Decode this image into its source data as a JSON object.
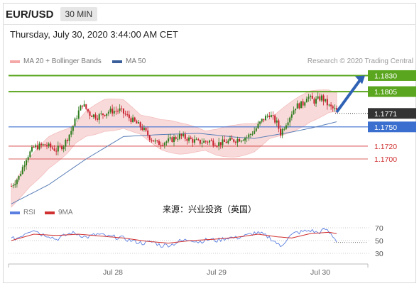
{
  "header": {
    "pair": "EUR/USD",
    "timeframe": "30 MIN",
    "datetime": "Thursday, July 30, 2020 3:44:00 AM CET"
  },
  "legend": {
    "ma20": "MA 20 + Bollinger Bands",
    "ma50": "MA 50",
    "rsi": "RSI",
    "ma9": "9MA"
  },
  "credit": "Research © 2020 Trading Central",
  "watermark": "来源：兴业投资（英国）",
  "colors": {
    "resistance": "#5aa61e",
    "support_blue": "#3a6fcf",
    "support_red": "#d03030",
    "candle_up": "#2f7d1f",
    "candle_down": "#c71f2c",
    "band_fill": "#f9d6d6",
    "ma50": "#5b7fb8",
    "rsi": "#5b7fe0",
    "ma9": "#d03030",
    "price_tag": "#333333"
  },
  "chart_data": [
    {
      "type": "candlestick",
      "title": "EUR/USD",
      "x_labels": [
        "Jul 28",
        "Jul 29",
        "Jul 30"
      ],
      "ylim": [
        1.1627,
        1.1846
      ],
      "levels": [
        {
          "value": 1.183,
          "label": "1.1830",
          "kind": "resistance"
        },
        {
          "value": 1.1805,
          "label": "1.1805",
          "kind": "resistance"
        },
        {
          "value": 1.1771,
          "label": "1.1771",
          "kind": "last_price"
        },
        {
          "value": 1.175,
          "label": "1.1750",
          "kind": "pivot"
        },
        {
          "value": 1.172,
          "label": "1.1720",
          "kind": "support"
        },
        {
          "value": 1.17,
          "label": "1.1700",
          "kind": "support"
        }
      ],
      "arrow": {
        "from": 1.1773,
        "to": 1.183,
        "direction": "up"
      },
      "close_path": [
        [
          0,
          1.1658
        ],
        [
          4,
          1.1672
        ],
        [
          8,
          1.1702
        ],
        [
          12,
          1.1718
        ],
        [
          18,
          1.1722
        ],
        [
          24,
          1.1714
        ],
        [
          28,
          1.1722
        ],
        [
          32,
          1.1744
        ],
        [
          36,
          1.1774
        ],
        [
          38,
          1.1786
        ],
        [
          42,
          1.177
        ],
        [
          46,
          1.1766
        ],
        [
          52,
          1.1774
        ],
        [
          58,
          1.1776
        ],
        [
          64,
          1.1762
        ],
        [
          70,
          1.1748
        ],
        [
          74,
          1.1734
        ],
        [
          78,
          1.1724
        ],
        [
          84,
          1.1728
        ],
        [
          90,
          1.1736
        ],
        [
          96,
          1.173
        ],
        [
          100,
          1.1726
        ],
        [
          106,
          1.1728
        ],
        [
          110,
          1.1724
        ],
        [
          114,
          1.1726
        ],
        [
          120,
          1.173
        ],
        [
          126,
          1.1734
        ],
        [
          130,
          1.1744
        ],
        [
          134,
          1.176
        ],
        [
          138,
          1.177
        ],
        [
          142,
          1.1756
        ],
        [
          144,
          1.174
        ],
        [
          148,
          1.1762
        ],
        [
          152,
          1.1782
        ],
        [
          156,
          1.1786
        ],
        [
          158,
          1.1798
        ],
        [
          162,
          1.179
        ],
        [
          166,
          1.1796
        ],
        [
          170,
          1.1782
        ],
        [
          174,
          1.1775
        ]
      ],
      "ma20": [
        [
          0,
          1.164
        ],
        [
          10,
          1.168
        ],
        [
          20,
          1.171
        ],
        [
          30,
          1.1728
        ],
        [
          40,
          1.1755
        ],
        [
          50,
          1.1768
        ],
        [
          60,
          1.177
        ],
        [
          70,
          1.1752
        ],
        [
          80,
          1.1738
        ],
        [
          90,
          1.1732
        ],
        [
          100,
          1.173
        ],
        [
          110,
          1.1726
        ],
        [
          120,
          1.1728
        ],
        [
          130,
          1.1733
        ],
        [
          140,
          1.175
        ],
        [
          150,
          1.1766
        ],
        [
          160,
          1.1782
        ],
        [
          170,
          1.179
        ],
        [
          174,
          1.1788
        ]
      ],
      "ma50": [
        [
          0,
          1.163
        ],
        [
          20,
          1.166
        ],
        [
          40,
          1.17
        ],
        [
          60,
          1.1735
        ],
        [
          80,
          1.1738
        ],
        [
          100,
          1.174
        ],
        [
          120,
          1.1734
        ],
        [
          130,
          1.1732
        ],
        [
          140,
          1.1737
        ],
        [
          150,
          1.1742
        ],
        [
          160,
          1.1748
        ],
        [
          170,
          1.1755
        ],
        [
          174,
          1.1758
        ]
      ],
      "band_width": 0.002
    },
    {
      "type": "line",
      "title": "RSI",
      "ylim": [
        20,
        80
      ],
      "y_ticks": [
        70,
        50,
        30
      ],
      "series": [
        {
          "name": "RSI",
          "values": [
            [
              0,
              52
            ],
            [
              4,
              55
            ],
            [
              8,
              63
            ],
            [
              12,
              68
            ],
            [
              16,
              60
            ],
            [
              20,
              58
            ],
            [
              24,
              52
            ],
            [
              28,
              57
            ],
            [
              32,
              62
            ],
            [
              36,
              60
            ],
            [
              40,
              55
            ],
            [
              46,
              60
            ],
            [
              52,
              56
            ],
            [
              58,
              55
            ],
            [
              64,
              50
            ],
            [
              70,
              46
            ],
            [
              76,
              48
            ],
            [
              80,
              42
            ],
            [
              86,
              44
            ],
            [
              90,
              49
            ],
            [
              96,
              52
            ],
            [
              100,
              48
            ],
            [
              106,
              52
            ],
            [
              110,
              50
            ],
            [
              116,
              55
            ],
            [
              120,
              54
            ],
            [
              126,
              58
            ],
            [
              130,
              62
            ],
            [
              134,
              60
            ],
            [
              138,
              55
            ],
            [
              142,
              46
            ],
            [
              144,
              40
            ],
            [
              148,
              55
            ],
            [
              152,
              62
            ],
            [
              156,
              64
            ],
            [
              160,
              66
            ],
            [
              164,
              62
            ],
            [
              168,
              68
            ],
            [
              172,
              57
            ],
            [
              174,
              50
            ]
          ]
        },
        {
          "name": "9MA",
          "values": [
            [
              0,
              50
            ],
            [
              12,
              60
            ],
            [
              24,
              58
            ],
            [
              36,
              60
            ],
            [
              48,
              57
            ],
            [
              60,
              54
            ],
            [
              72,
              49
            ],
            [
              84,
              46
            ],
            [
              96,
              50
            ],
            [
              108,
              52
            ],
            [
              120,
              55
            ],
            [
              132,
              60
            ],
            [
              142,
              56
            ],
            [
              150,
              54
            ],
            [
              160,
              61
            ],
            [
              170,
              63
            ],
            [
              174,
              61
            ]
          ]
        }
      ]
    }
  ]
}
